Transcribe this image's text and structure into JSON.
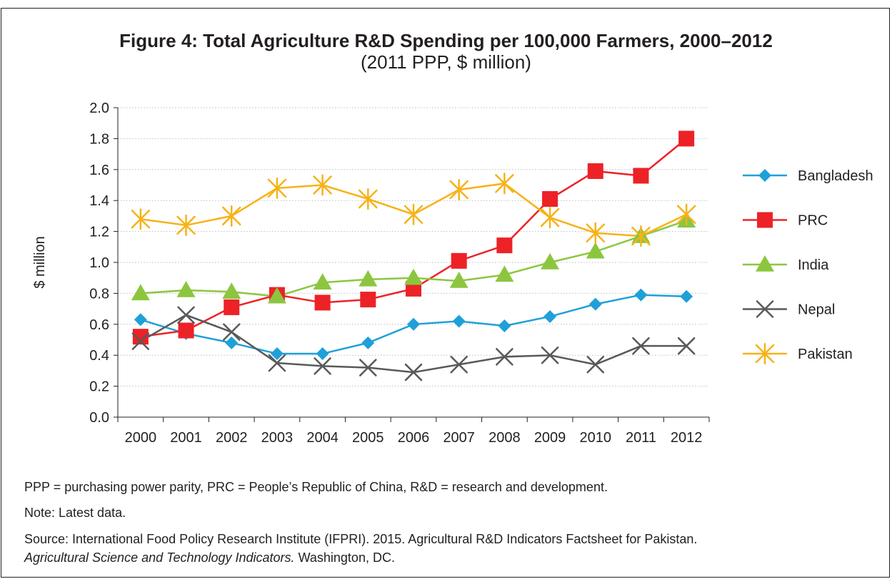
{
  "figure": {
    "title": "Figure 4: Total Agriculture R&D Spending per 100,000 Farmers, 2000–2012",
    "subtitle": "(2011 PPP, $ million)"
  },
  "notes": {
    "abbreviations": "PPP = purchasing power parity, PRC = People’s Republic of China, R&D = research and development.",
    "note": "Note: Latest data.",
    "source_line1": "Source: International Food Policy Research Institute (IFPRI). 2015. Agricultural R&D Indicators Factsheet for Pakistan.",
    "source_line2_italic": "Agricultural Science and Technology Indicators.",
    "source_line2_rest": " Washington, DC."
  },
  "chart_data": {
    "type": "line",
    "title": "Figure 4: Total Agriculture R&D Spending per 100,000 Farmers, 2000–2012",
    "subtitle": "(2011 PPP, $ million)",
    "xlabel": "",
    "ylabel": "$ million",
    "ylim": [
      0,
      2.0
    ],
    "yticks": [
      "0.0",
      "0.2",
      "0.4",
      "0.6",
      "0.8",
      "1.0",
      "1.2",
      "1.4",
      "1.6",
      "1.8",
      "2.0"
    ],
    "categories": [
      "2000",
      "2001",
      "2002",
      "2003",
      "2004",
      "2005",
      "2006",
      "2007",
      "2008",
      "2009",
      "2010",
      "2011",
      "2012"
    ],
    "grid": "horizontal dotted",
    "legend_position": "right",
    "series": [
      {
        "name": "Bangladesh",
        "color": "#1fa0d8",
        "marker": "diamond",
        "values": [
          0.63,
          0.54,
          0.48,
          0.41,
          0.41,
          0.48,
          0.6,
          0.62,
          0.59,
          0.65,
          0.73,
          0.79,
          0.78
        ]
      },
      {
        "name": "PRC",
        "color": "#ec2227",
        "marker": "square",
        "values": [
          0.52,
          0.56,
          0.71,
          0.79,
          0.74,
          0.76,
          0.83,
          1.01,
          1.11,
          1.41,
          1.59,
          1.56,
          1.8
        ]
      },
      {
        "name": "India",
        "color": "#8cc63f",
        "marker": "triangle",
        "values": [
          0.8,
          0.82,
          0.81,
          0.78,
          0.87,
          0.89,
          0.9,
          0.88,
          0.92,
          1.0,
          1.07,
          1.17,
          1.27
        ]
      },
      {
        "name": "Nepal",
        "color": "#58595b",
        "marker": "x",
        "values": [
          0.49,
          0.66,
          0.55,
          0.35,
          0.33,
          0.32,
          0.29,
          0.34,
          0.39,
          0.4,
          0.34,
          0.46,
          0.46
        ]
      },
      {
        "name": "Pakistan",
        "color": "#f7b218",
        "marker": "star",
        "values": [
          1.28,
          1.24,
          1.3,
          1.48,
          1.5,
          1.41,
          1.31,
          1.47,
          1.51,
          1.29,
          1.19,
          1.17,
          1.31
        ]
      }
    ]
  }
}
